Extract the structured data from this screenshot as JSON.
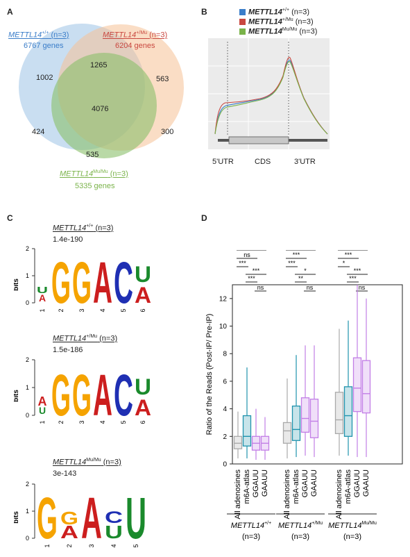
{
  "panels": {
    "a": "A",
    "b": "B",
    "c": "C",
    "d": "D"
  },
  "venn": {
    "left": {
      "gene": "METTL14",
      "sup": "+/+",
      "n": " (n=3)",
      "count": "6767 genes"
    },
    "right": {
      "gene": "METTL14",
      "sup": "+/Mu",
      "n": " (n=3)",
      "count": "6204 genes"
    },
    "bottom": {
      "gene": "METTL14",
      "sup": "Mu/Mu",
      "n": " (n=3)",
      "count": "5335 genes"
    },
    "regions": {
      "a_only": "1002",
      "ab": "1265",
      "b_only": "563",
      "abc": "4076",
      "ac": "424",
      "bc": "300",
      "c_only": "535"
    },
    "colors": {
      "a": "#9cc3e6",
      "b": "#f6c196",
      "c": "#8bbf6a"
    }
  },
  "metagene": {
    "legend": [
      {
        "gene": "METTL14",
        "sup": "+/+",
        "n": " (n=3)",
        "color": "#3a7dc9"
      },
      {
        "gene": "METTL14",
        "sup": "+/Mu",
        "n": " (n=3)",
        "color": "#c9473f"
      },
      {
        "gene": "METTL14",
        "sup": "Mu/Mu",
        "n": " (n=3)",
        "color": "#7ab34a"
      }
    ],
    "regions": [
      "5'UTR",
      "CDS",
      "3'UTR"
    ]
  },
  "motifs": [
    {
      "gene": "METTL14",
      "sup": "+/+",
      "n": " (n=3)",
      "evalue": "1.4e-190",
      "ylabel": "bits",
      "yticks": [
        "0",
        "1",
        "2"
      ],
      "positions": [
        "1",
        "2",
        "3",
        "4",
        "5",
        "6"
      ]
    },
    {
      "gene": "METTL14",
      "sup": "+/Mu",
      "n": " (n=3)",
      "evalue": "1.5e-186",
      "ylabel": "bits",
      "yticks": [
        "0",
        "1",
        "2"
      ],
      "positions": [
        "1",
        "2",
        "3",
        "4",
        "5",
        "6"
      ]
    },
    {
      "gene": "METTL14",
      "sup": "Mu/Mu",
      "n": " (n=3)",
      "evalue": "3e-143",
      "ylabel": "bits",
      "yticks": [
        "0",
        "1",
        "2"
      ],
      "positions": [
        "1",
        "2",
        "3",
        "4",
        "5"
      ]
    }
  ],
  "boxplot": {
    "ylabel": "Ratio of the Reads (Post-IP/ Pre-IP)",
    "yticks": [
      "0",
      "2",
      "4",
      "6",
      "8",
      "10",
      "12"
    ],
    "categories": [
      "All adenosines",
      "m6A-atlas",
      "GGAUU",
      "GAAUU"
    ],
    "colors": [
      "#a9a9a9",
      "#1f93ad",
      "#c27ee6",
      "#c27ee6"
    ],
    "groups": [
      {
        "gene": "METTL14",
        "sup": "+/+",
        "n": "(n=3)",
        "sig": [
          "ns",
          "ns",
          "***",
          "***",
          "***",
          "ns"
        ]
      },
      {
        "gene": "METTL14",
        "sup": "+/Mu",
        "n": "(n=3)",
        "sig": [
          "***",
          "***",
          "***",
          "*",
          "**",
          "ns"
        ]
      },
      {
        "gene": "METTL14",
        "sup": "Mu/Mu",
        "n": "(n=3)",
        "sig": [
          "***",
          "***",
          "*",
          "***",
          "***",
          "ns"
        ]
      }
    ]
  },
  "chart_data": {
    "type": "box",
    "ylabel": "Ratio of the Reads (Post-IP/ Pre-IP)",
    "ylim": [
      0,
      13
    ],
    "categories": [
      "All adenosines",
      "m6A-atlas",
      "GGAUU",
      "GAAUU"
    ],
    "series": [
      {
        "name": "METTL14+/+",
        "boxes": [
          {
            "min": 0.4,
            "q1": 1.1,
            "median": 1.5,
            "q3": 2.0,
            "max": 3.8
          },
          {
            "min": 0.4,
            "q1": 1.3,
            "median": 2.0,
            "q3": 3.5,
            "max": 7.0
          },
          {
            "min": 0.3,
            "q1": 1.0,
            "median": 1.5,
            "q3": 2.0,
            "max": 4.0
          },
          {
            "min": 0.3,
            "q1": 1.0,
            "median": 1.5,
            "q3": 2.0,
            "max": 3.4
          }
        ]
      },
      {
        "name": "METTL14+/Mu",
        "boxes": [
          {
            "min": 0.4,
            "q1": 1.5,
            "median": 2.4,
            "q3": 3.0,
            "max": 6.2
          },
          {
            "min": 0.5,
            "q1": 1.7,
            "median": 2.5,
            "q3": 4.2,
            "max": 7.9
          },
          {
            "min": 0.6,
            "q1": 2.3,
            "median": 3.3,
            "q3": 4.8,
            "max": 8.6
          },
          {
            "min": 0.5,
            "q1": 1.9,
            "median": 3.1,
            "q3": 4.7,
            "max": 8.6
          }
        ]
      },
      {
        "name": "METTL14Mu/Mu",
        "boxes": [
          {
            "min": 0.6,
            "q1": 2.2,
            "median": 3.2,
            "q3": 5.2,
            "max": 9.8
          },
          {
            "min": 0.6,
            "q1": 2.0,
            "median": 3.5,
            "q3": 5.6,
            "max": 10.4
          },
          {
            "min": 0.5,
            "q1": 3.8,
            "median": 5.5,
            "q3": 7.7,
            "max": 13.0
          },
          {
            "min": 0.5,
            "q1": 3.7,
            "median": 5.1,
            "q3": 7.5,
            "max": 12.0
          }
        ]
      }
    ]
  }
}
